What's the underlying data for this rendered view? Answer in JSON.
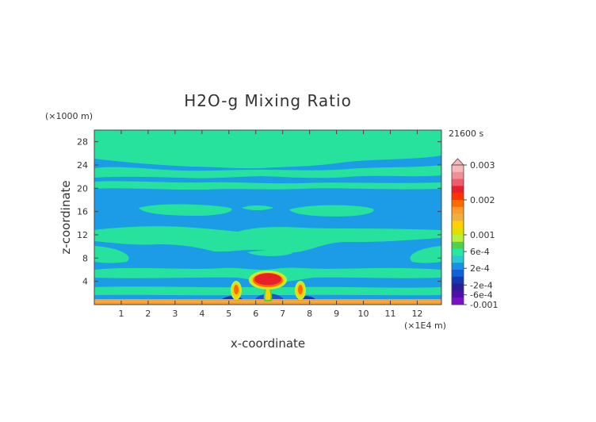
{
  "chart_data": {
    "type": "heatmap",
    "title": "H2O-g Mixing Ratio",
    "xlabel": "x-coordinate",
    "ylabel": "z-coordinate",
    "x_unit": "(×1E4 m)",
    "y_unit": "(×1000 m)",
    "time_label": "21600 s",
    "xlim": [
      0,
      12.9
    ],
    "ylim": [
      0,
      30
    ],
    "x_ticks": [
      "1",
      "2",
      "3",
      "4",
      "5",
      "6",
      "7",
      "8",
      "9",
      "10",
      "11",
      "12"
    ],
    "y_ticks": [
      "4",
      "8",
      "12",
      "16",
      "20",
      "24",
      "28"
    ],
    "colorbar": {
      "labels": [
        "0.003",
        "0.002",
        "0.001",
        "6e-4",
        "2e-4",
        "-2e-4",
        "-6e-4",
        "-0.001"
      ],
      "colors": [
        "#f7b8bc",
        "#f28e96",
        "#ee5d6c",
        "#e8202a",
        "#ff3300",
        "#ff6a00",
        "#ff9a2e",
        "#f0b040",
        "#ffd000",
        "#e0e000",
        "#b8f03c",
        "#4cd24c",
        "#28e8a0",
        "#28c8d8",
        "#1890e8",
        "#1060d8",
        "#1438b0",
        "#281e98",
        "#5010a8",
        "#7a10c8"
      ],
      "range": [
        -0.001,
        0.003
      ]
    },
    "background_value_range": [
      -0.0002,
      0.0002
    ],
    "features": [
      {
        "label": "moist core (max ~0.002)",
        "x": 6.3,
        "z": 4.5
      },
      {
        "label": "plume",
        "x": 5.2,
        "z": 2.5
      },
      {
        "label": "plume",
        "x": 7.6,
        "z": 2.5
      },
      {
        "label": "surface layer",
        "z": 0.5
      }
    ]
  }
}
